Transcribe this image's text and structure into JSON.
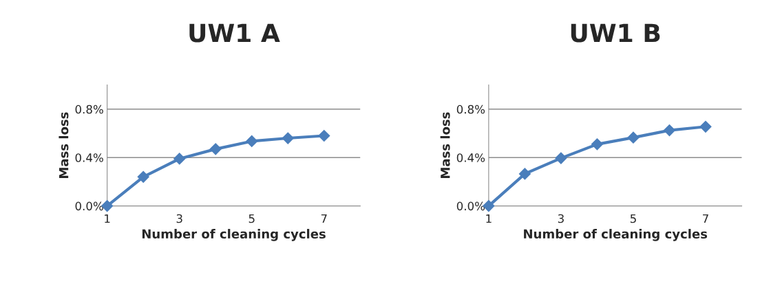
{
  "chart_data": [
    {
      "type": "line",
      "title": "UW1 A",
      "xlabel": "Number of cleaning cycles",
      "ylabel": "Mass loss",
      "x": [
        1,
        2,
        3,
        4,
        5,
        6,
        7
      ],
      "series": [
        {
          "color": "#4a7ebb",
          "values": [
            0.0,
            0.24,
            0.39,
            0.47,
            0.535,
            0.56,
            0.58
          ]
        }
      ],
      "xlim": [
        1,
        8
      ],
      "xticks": [
        1,
        3,
        5,
        7
      ],
      "ylim": [
        0,
        1.0
      ],
      "yticks": [
        {
          "value": 0,
          "label": "0.0%"
        },
        {
          "value": 0.4,
          "label": "0.4%"
        },
        {
          "value": 0.8,
          "label": "0.8%"
        }
      ],
      "grid": "y",
      "marker": "diamond",
      "line_style": "solid",
      "legend": false
    },
    {
      "type": "line",
      "title": "UW1 B",
      "xlabel": "Number of cleaning cycles",
      "ylabel": "Mass loss",
      "x": [
        1,
        2,
        3,
        4,
        5,
        6,
        7
      ],
      "series": [
        {
          "color": "#4a7ebb",
          "values": [
            0.0,
            0.265,
            0.395,
            0.51,
            0.565,
            0.625,
            0.655
          ]
        }
      ],
      "xlim": [
        1,
        8
      ],
      "xticks": [
        1,
        3,
        5,
        7
      ],
      "ylim": [
        0,
        1.0
      ],
      "yticks": [
        {
          "value": 0,
          "label": "0.0%"
        },
        {
          "value": 0.4,
          "label": "0.4%"
        },
        {
          "value": 0.8,
          "label": "0.8%"
        }
      ],
      "grid": "y",
      "marker": "diamond",
      "line_style": "solid",
      "legend": false
    }
  ]
}
